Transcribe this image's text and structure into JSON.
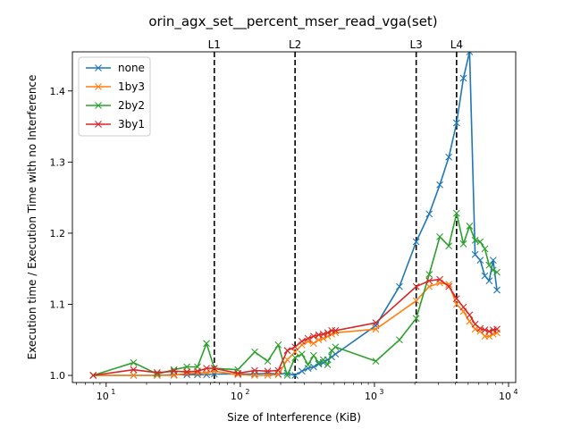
{
  "chart_data": {
    "type": "line",
    "title": "orin_agx_set__percent_mser_read_vga(set)",
    "xlabel": "Size of Interference (KiB)",
    "ylabel": "Execution time / Execution Time with no Interference",
    "xscale": "log",
    "xlim": [
      5.6,
      11300
    ],
    "ylim": [
      0.99,
      1.455
    ],
    "x_ticks": [
      {
        "value": 10,
        "base": "10",
        "exp": "1"
      },
      {
        "value": 100,
        "base": "10",
        "exp": "2"
      },
      {
        "value": 1000,
        "base": "10",
        "exp": "3"
      },
      {
        "value": 10000,
        "base": "10",
        "exp": "4"
      }
    ],
    "y_ticks": [
      {
        "value": 1.0,
        "label": "1.0"
      },
      {
        "value": 1.1,
        "label": "1.1"
      },
      {
        "value": 1.2,
        "label": "1.2"
      },
      {
        "value": 1.3,
        "label": "1.3"
      },
      {
        "value": 1.4,
        "label": "1.4"
      }
    ],
    "legend_position": "top-left",
    "vlines": [
      {
        "label": "L1",
        "x": 64
      },
      {
        "label": "L2",
        "x": 256
      },
      {
        "label": "L3",
        "x": 2048
      },
      {
        "label": "L4",
        "x": 4096
      }
    ],
    "series": [
      {
        "name": "none",
        "color": "#1f77b4",
        "x": [
          8,
          16,
          24,
          32,
          40,
          48,
          56,
          64,
          96,
          128,
          160,
          192,
          224,
          256,
          288,
          320,
          352,
          384,
          416,
          448,
          480,
          512,
          1024,
          1536,
          2048,
          2560,
          3072,
          3584,
          4096,
          4608,
          5120,
          5632,
          6144,
          6656,
          7168,
          7680,
          8192
        ],
        "y": [
          1.0,
          1.0,
          1.0,
          1.001,
          1.001,
          1.001,
          1.001,
          1.002,
          1.002,
          1.002,
          1.003,
          1.002,
          1.003,
          1.0,
          1.006,
          1.01,
          1.012,
          1.016,
          1.018,
          1.022,
          1.026,
          1.03,
          1.07,
          1.125,
          1.188,
          1.227,
          1.268,
          1.307,
          1.355,
          1.418,
          1.455,
          1.17,
          1.162,
          1.14,
          1.133,
          1.162,
          1.12
        ]
      },
      {
        "name": "1by3",
        "color": "#ff7f0e",
        "x": [
          8,
          16,
          24,
          32,
          40,
          48,
          56,
          64,
          96,
          128,
          160,
          192,
          224,
          256,
          288,
          320,
          352,
          384,
          416,
          448,
          480,
          512,
          1024,
          2048,
          2560,
          3072,
          3584,
          4096,
          4608,
          5120,
          5632,
          6144,
          6656,
          7168,
          7680,
          8192
        ],
        "y": [
          1.0,
          1.0,
          1.0,
          1.0,
          1.003,
          1.003,
          1.004,
          1.006,
          1.001,
          1.0,
          1.0,
          1.001,
          1.022,
          1.033,
          1.043,
          1.048,
          1.045,
          1.05,
          1.052,
          1.055,
          1.058,
          1.06,
          1.065,
          1.105,
          1.125,
          1.13,
          1.128,
          1.1,
          1.09,
          1.076,
          1.065,
          1.062,
          1.055,
          1.055,
          1.058,
          1.06
        ]
      },
      {
        "name": "2by2",
        "color": "#2ca02c",
        "x": [
          8,
          16,
          24,
          32,
          40,
          48,
          56,
          64,
          96,
          128,
          160,
          192,
          224,
          256,
          288,
          320,
          352,
          384,
          416,
          448,
          480,
          512,
          1024,
          1536,
          2048,
          2560,
          3072,
          3584,
          4096,
          4608,
          5120,
          5632,
          6144,
          6656,
          7168,
          7680,
          8192
        ],
        "y": [
          1.0,
          1.018,
          1.002,
          1.008,
          1.012,
          1.012,
          1.045,
          1.01,
          1.008,
          1.033,
          1.02,
          1.043,
          1.0,
          1.025,
          1.03,
          1.015,
          1.028,
          1.018,
          1.022,
          1.015,
          1.035,
          1.04,
          1.02,
          1.05,
          1.08,
          1.142,
          1.195,
          1.182,
          1.228,
          1.185,
          1.21,
          1.19,
          1.188,
          1.178,
          1.155,
          1.148,
          1.145
        ]
      },
      {
        "name": "3by1",
        "color": "#d62728",
        "x": [
          8,
          16,
          24,
          32,
          40,
          48,
          56,
          64,
          96,
          128,
          160,
          192,
          224,
          256,
          288,
          320,
          352,
          384,
          416,
          448,
          480,
          512,
          1024,
          2048,
          2560,
          3072,
          3584,
          4096,
          4608,
          5120,
          5632,
          6144,
          6656,
          7168,
          7680,
          8192
        ],
        "y": [
          1.0,
          1.008,
          1.004,
          1.006,
          1.005,
          1.006,
          1.01,
          1.01,
          1.003,
          1.007,
          1.006,
          1.007,
          1.035,
          1.04,
          1.048,
          1.052,
          1.055,
          1.057,
          1.058,
          1.06,
          1.063,
          1.063,
          1.074,
          1.125,
          1.133,
          1.135,
          1.125,
          1.108,
          1.096,
          1.085,
          1.072,
          1.066,
          1.064,
          1.062,
          1.064,
          1.065
        ]
      }
    ]
  }
}
